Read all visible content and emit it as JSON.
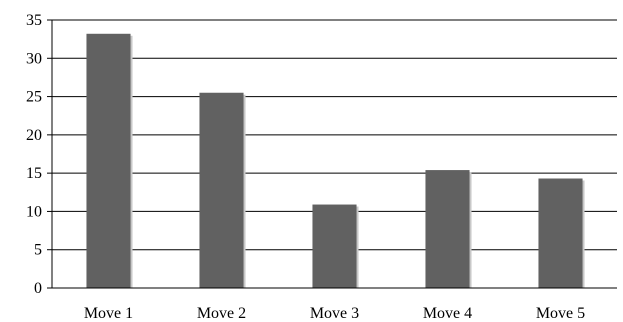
{
  "chart_data": {
    "type": "bar",
    "title": "",
    "xlabel": "",
    "ylabel": "",
    "categories": [
      "Move 1",
      "Move 2",
      "Move 3",
      "Move 4",
      "Move 5"
    ],
    "values": [
      33.2,
      25.5,
      10.9,
      15.4,
      14.3
    ],
    "ylim": [
      0,
      35
    ],
    "yticks": [
      "0",
      "5",
      "10",
      "15",
      "20",
      "25",
      "30",
      "35"
    ],
    "grid": true,
    "legend": "none",
    "bar_color": "#616161"
  }
}
